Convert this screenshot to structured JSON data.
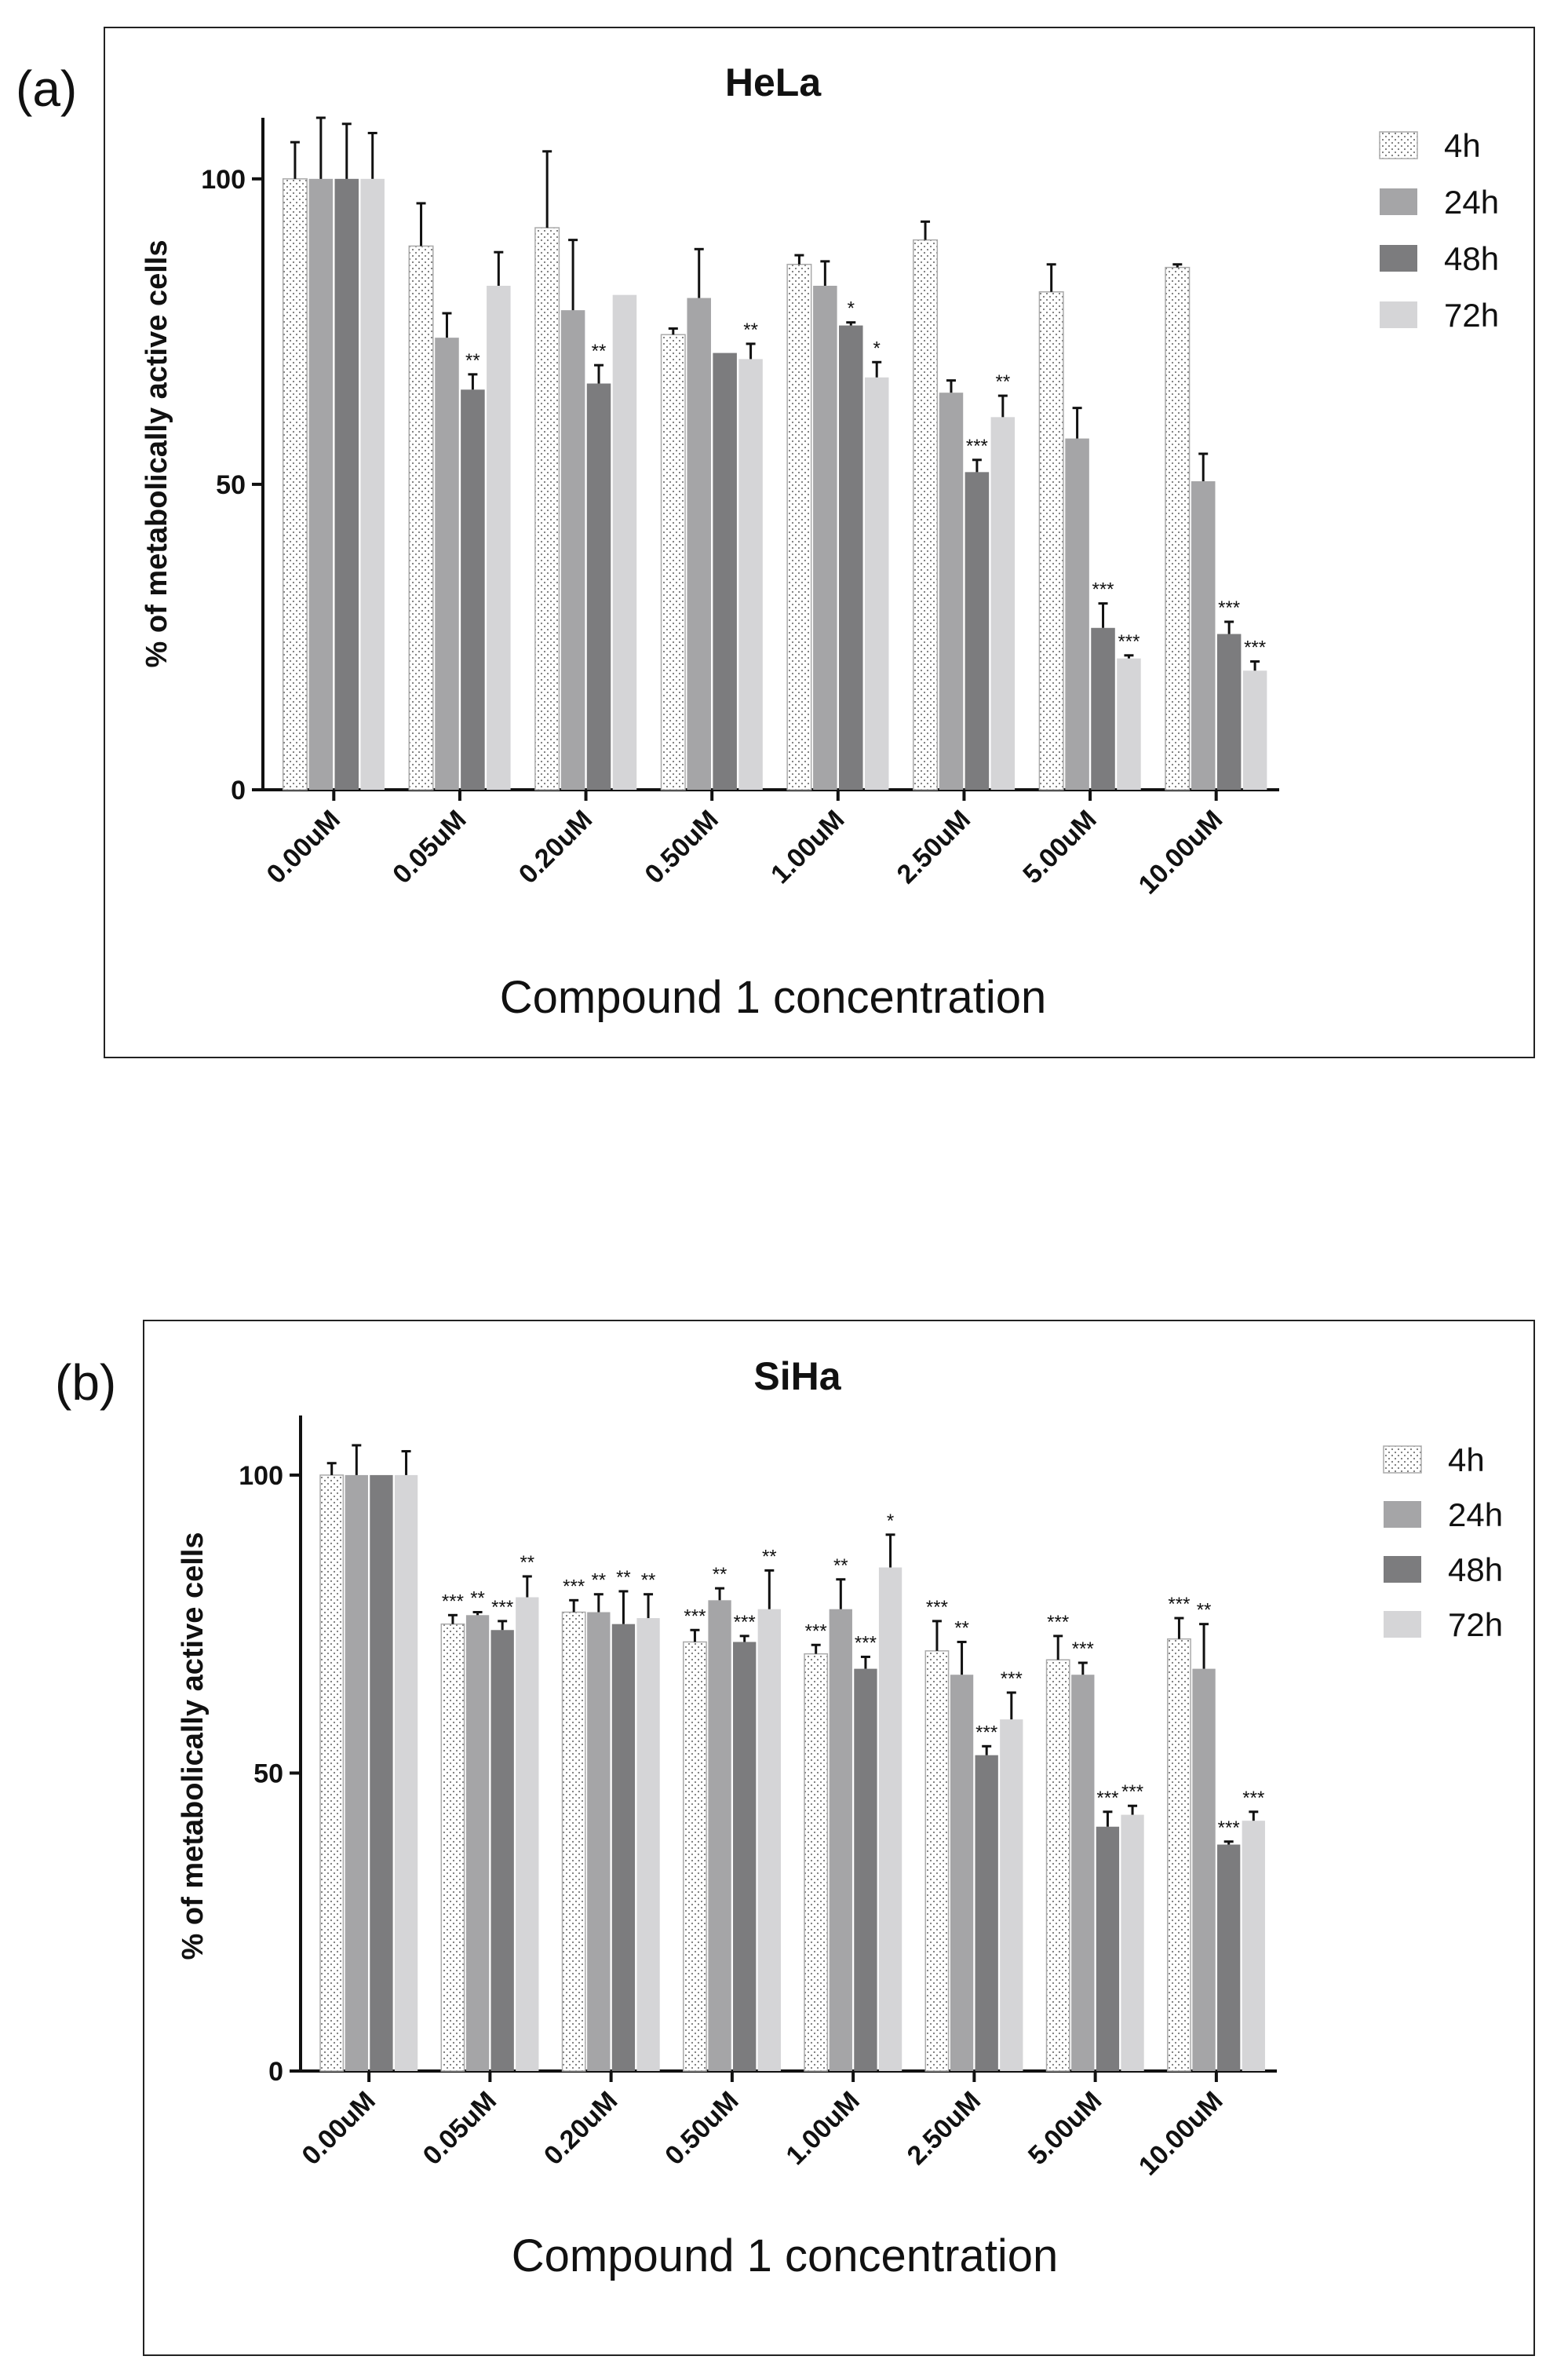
{
  "chart_data": [
    {
      "type": "bar",
      "panel_label": "(a)",
      "title": "HeLa",
      "xlabel": "Compound 1 concentration",
      "ylabel": "% of metabolically active cells",
      "ylim": [
        0,
        110
      ],
      "yticks": [
        0,
        50,
        100
      ],
      "legend_position": "top-right",
      "categories": [
        "0.00uM",
        "0.05uM",
        "0.20uM",
        "0.50uM",
        "1.00uM",
        "2.50uM",
        "5.00uM",
        "10.00uM"
      ],
      "series": [
        {
          "name": "4h",
          "color": "#ffffff",
          "pattern": "dotted",
          "values": [
            100,
            89,
            92,
            74.5,
            86,
            90,
            81.5,
            85.5
          ],
          "errors": [
            6,
            7,
            12.5,
            1,
            1.5,
            3,
            4.5,
            0.5
          ],
          "significance": [
            "",
            "",
            "",
            "",
            "",
            "",
            "",
            ""
          ]
        },
        {
          "name": "24h",
          "color": "#a5a5a7",
          "values": [
            100,
            74,
            78.5,
            80.5,
            82.5,
            65,
            57.5,
            50.5
          ],
          "errors": [
            10,
            4,
            11.5,
            8,
            4,
            2,
            5,
            4.5
          ],
          "significance": [
            "",
            "",
            "",
            "",
            "",
            "",
            "",
            ""
          ]
        },
        {
          "name": "48h",
          "color": "#7c7c7e",
          "values": [
            100,
            65.5,
            66.5,
            71.5,
            76,
            52,
            26.5,
            25.5
          ],
          "errors": [
            9,
            2.5,
            3,
            0,
            0.5,
            2,
            4,
            2
          ],
          "significance": [
            "",
            "**",
            "**",
            "",
            "*",
            "***",
            "***",
            "***"
          ]
        },
        {
          "name": "72h",
          "color": "#d5d5d7",
          "values": [
            100,
            82.5,
            81,
            70.5,
            67.5,
            61,
            21.5,
            19.5
          ],
          "errors": [
            7.5,
            5.5,
            0,
            2.5,
            2.5,
            3.5,
            0.5,
            1.5
          ],
          "significance": [
            "",
            "",
            "",
            "**",
            "*",
            "**",
            "***",
            "***"
          ]
        }
      ]
    },
    {
      "type": "bar",
      "panel_label": "(b)",
      "title": "SiHa",
      "xlabel": "Compound 1 concentration",
      "ylabel": "% of metabolically active cells",
      "ylim": [
        0,
        110
      ],
      "yticks": [
        0,
        50,
        100
      ],
      "legend_position": "top-right",
      "categories": [
        "0.00uM",
        "0.05uM",
        "0.20uM",
        "0.50uM",
        "1.00uM",
        "2.50uM",
        "5.00uM",
        "10.00uM"
      ],
      "series": [
        {
          "name": "4h",
          "color": "#ffffff",
          "pattern": "dotted",
          "values": [
            100,
            75,
            77,
            72,
            70,
            70.5,
            69,
            72.5
          ],
          "errors": [
            2,
            1.5,
            2,
            2,
            1.5,
            5,
            4,
            3.5
          ],
          "significance": [
            "",
            "***",
            "***",
            "***",
            "***",
            "***",
            "***",
            "***"
          ]
        },
        {
          "name": "24h",
          "color": "#a5a5a7",
          "values": [
            100,
            76.5,
            77,
            79,
            77.5,
            66.5,
            66.5,
            67.5
          ],
          "errors": [
            5,
            0.5,
            3,
            2,
            5,
            5.5,
            2,
            7.5
          ],
          "significance": [
            "",
            "**",
            "**",
            "**",
            "**",
            "**",
            "***",
            "**"
          ]
        },
        {
          "name": "48h",
          "color": "#7c7c7e",
          "values": [
            100,
            74,
            75,
            72,
            67.5,
            53,
            41,
            38
          ],
          "errors": [
            0,
            1.5,
            5.5,
            1,
            2,
            1.5,
            2.5,
            0.5
          ],
          "significance": [
            "",
            "***",
            "**",
            "***",
            "***",
            "***",
            "***",
            "***"
          ]
        },
        {
          "name": "72h",
          "color": "#d5d5d7",
          "values": [
            100,
            79.5,
            76,
            77.5,
            84.5,
            59,
            43,
            42
          ],
          "errors": [
            4,
            3.5,
            4,
            6.5,
            5.5,
            4.5,
            1.5,
            1.5
          ],
          "significance": [
            "",
            "**",
            "**",
            "**",
            "*",
            "***",
            "***",
            "***"
          ]
        }
      ]
    }
  ]
}
